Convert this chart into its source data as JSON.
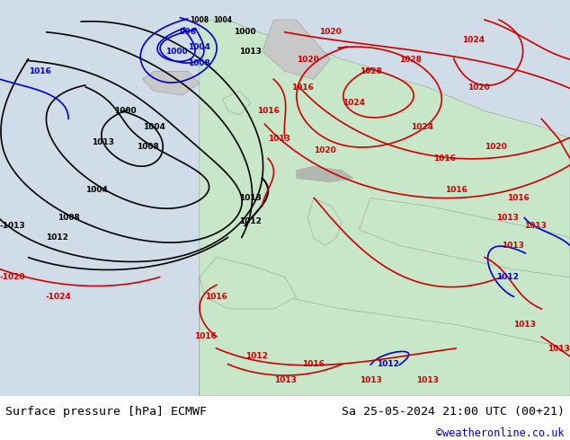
{
  "title_left": "Surface pressure [hPa] ECMWF",
  "title_right": "Sa 25-05-2024 21:00 UTC (00+21)",
  "credit": "©weatheronline.co.uk",
  "bg_color": "#e8f4e8",
  "fig_width": 6.34,
  "fig_height": 4.9,
  "dpi": 100,
  "bottom_bar_color": "#ffffff",
  "bottom_bar_height": 0.1,
  "credit_color": "#0000cc",
  "text_color": "#000000",
  "title_fontsize": 9.5,
  "credit_fontsize": 8.5
}
